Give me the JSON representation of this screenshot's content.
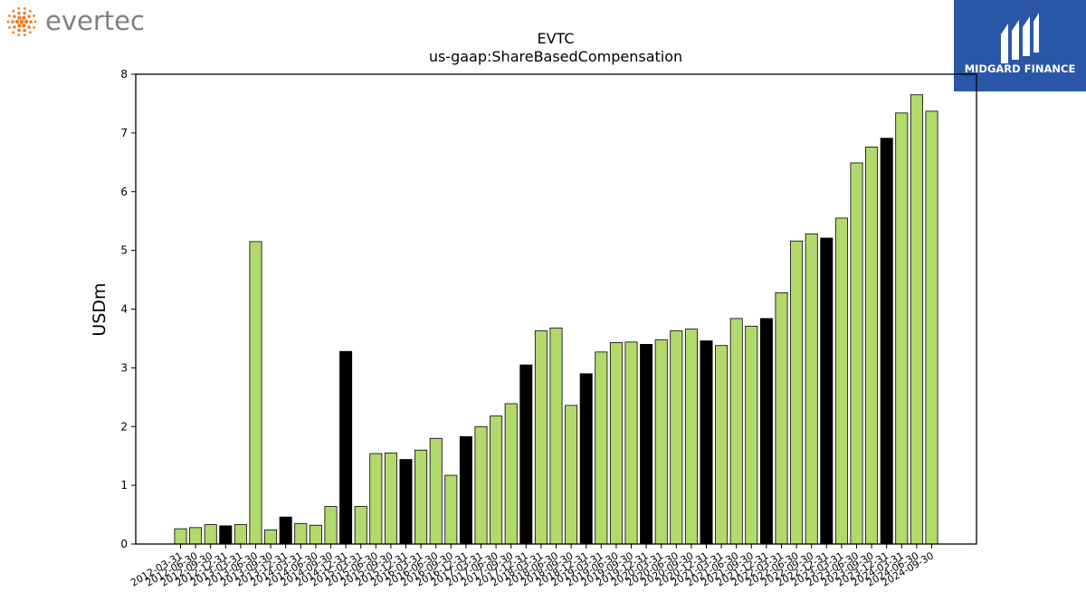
{
  "logos": {
    "left_wordmark": "evertec",
    "left_color": "#f07d22",
    "right_wordmark": "MIDGARD FINANCE",
    "right_bg": "#2a56a8"
  },
  "chart_data": {
    "type": "bar",
    "title": "EVTC",
    "subtitle": "us-gaap:ShareBasedCompensation",
    "xlabel": "",
    "ylabel": "USDm",
    "ylim": [
      0,
      8
    ],
    "yticks": [
      0,
      1,
      2,
      3,
      4,
      5,
      6,
      7,
      8
    ],
    "grid": false,
    "colors": {
      "normal": "#b2d96b",
      "highlight": "#000000"
    },
    "categories": [
      "2012-03-31",
      "2012-06-30",
      "2012-09-30",
      "2012-12-31",
      "2013-03-31",
      "2013-06-30",
      "2013-09-30",
      "2013-12-31",
      "2014-03-31",
      "2014-06-30",
      "2014-09-30",
      "2014-12-31",
      "2015-03-31",
      "2015-06-30",
      "2015-09-30",
      "2015-12-31",
      "2016-03-31",
      "2016-06-30",
      "2016-09-30",
      "2016-12-31",
      "2017-03-31",
      "2017-06-30",
      "2017-09-30",
      "2017-12-31",
      "2018-03-31",
      "2018-06-30",
      "2018-09-30",
      "2018-12-31",
      "2019-03-31",
      "2019-06-30",
      "2019-09-30",
      "2019-12-31",
      "2020-03-31",
      "2020-06-30",
      "2020-09-30",
      "2020-12-31",
      "2021-03-31",
      "2021-06-30",
      "2021-09-30",
      "2021-12-31",
      "2022-03-31",
      "2022-06-30",
      "2022-09-30",
      "2022-12-31",
      "2023-03-31",
      "2023-06-30",
      "2023-09-30",
      "2023-12-31",
      "2024-03-31",
      "2024-06-30",
      "2024-09-30"
    ],
    "values": [
      0.26,
      0.28,
      0.33,
      0.31,
      0.33,
      5.15,
      0.24,
      0.46,
      0.35,
      0.32,
      0.64,
      3.28,
      0.64,
      1.54,
      1.55,
      1.44,
      1.6,
      1.8,
      1.17,
      1.83,
      2.0,
      2.18,
      2.39,
      3.05,
      3.63,
      3.68,
      2.36,
      2.9,
      3.27,
      3.43,
      3.44,
      3.4,
      3.48,
      3.63,
      3.66,
      3.46,
      3.38,
      3.84,
      3.71,
      3.84,
      4.28,
      5.16,
      5.28,
      5.21,
      5.55,
      6.49,
      6.76,
      6.91,
      7.34,
      7.65,
      7.37
    ],
    "highlight": [
      false,
      false,
      false,
      true,
      false,
      false,
      false,
      true,
      false,
      false,
      false,
      true,
      false,
      false,
      false,
      true,
      false,
      false,
      false,
      true,
      false,
      false,
      false,
      true,
      false,
      false,
      false,
      true,
      false,
      false,
      false,
      true,
      false,
      false,
      false,
      true,
      false,
      false,
      false,
      true,
      false,
      false,
      false,
      true,
      false,
      false,
      false,
      true,
      false,
      false,
      false
    ]
  }
}
